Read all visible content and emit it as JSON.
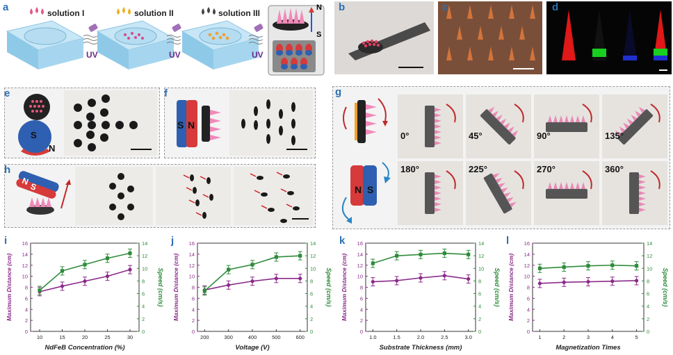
{
  "panels": {
    "a": "a",
    "b": "b",
    "c": "c",
    "d": "d",
    "e": "e",
    "f": "f",
    "g": "g",
    "h": "h",
    "i": "i",
    "j": "j",
    "k": "k",
    "l": "l"
  },
  "panel_a": {
    "solutions": [
      "solution I",
      "solution II",
      "solution III"
    ],
    "uv": "UV",
    "pole_n": "N",
    "pole_s": "S"
  },
  "panel_e": {
    "pole_s": "S",
    "pole_n": "N"
  },
  "panel_f": {
    "pole_s": "S",
    "pole_n": "N"
  },
  "panel_h": {
    "pole_n": "N",
    "pole_s": "S"
  },
  "panel_g": {
    "pole_n": "N",
    "pole_s": "S",
    "angles": [
      "0°",
      "45°",
      "90°",
      "135°",
      "180°",
      "225°",
      "270°",
      "360°"
    ]
  },
  "colors": {
    "blue_tray": "#a8d6ef",
    "pink": "#e27aa8",
    "purple_line": "#8a2a8a",
    "green_line": "#2e8b3a",
    "magnet_red": "#d63a3a",
    "magnet_blue": "#2f5fb0"
  },
  "chart_data": [
    {
      "type": "line",
      "xlabel": "NdFeB Concentration (%)",
      "ylabel": "Maximum Distance (cm)",
      "y2label": "Speed (cm/s)",
      "x": [
        10,
        15,
        20,
        25,
        30
      ],
      "xlim": [
        8,
        32
      ],
      "ylim": [
        0,
        16
      ],
      "y2lim": [
        0,
        14
      ],
      "xticks": [
        "10",
        "15",
        "20",
        "25",
        "30"
      ],
      "yticks": [
        "0",
        "2",
        "4",
        "6",
        "8",
        "10",
        "12",
        "14",
        "16"
      ],
      "y2ticks": [
        "0",
        "2",
        "4",
        "6",
        "8",
        "10",
        "12",
        "14"
      ],
      "series": [
        {
          "axis": "left",
          "values": [
            7.2,
            8.2,
            9.1,
            10.0,
            11.2
          ]
        },
        {
          "axis": "right",
          "values": [
            6.5,
            9.6,
            10.6,
            11.6,
            12.4
          ]
        }
      ]
    },
    {
      "type": "line",
      "xlabel": "Voltage (V)",
      "ylabel": "Maximum Distance (cm)",
      "y2label": "Speed (cm/s)",
      "x": [
        200,
        300,
        400,
        500,
        600
      ],
      "xlim": [
        170,
        630
      ],
      "ylim": [
        0,
        16
      ],
      "y2lim": [
        0,
        14
      ],
      "xticks": [
        "200",
        "300",
        "400",
        "500",
        "600"
      ],
      "yticks": [
        "0",
        "2",
        "4",
        "6",
        "8",
        "10",
        "12",
        "14",
        "16"
      ],
      "y2ticks": [
        "0",
        "2",
        "4",
        "6",
        "8",
        "10",
        "12",
        "14"
      ],
      "series": [
        {
          "axis": "left",
          "values": [
            7.5,
            8.4,
            9.1,
            9.6,
            9.6
          ]
        },
        {
          "axis": "right",
          "values": [
            6.4,
            9.8,
            10.6,
            11.8,
            12.0
          ]
        }
      ]
    },
    {
      "type": "line",
      "xlabel": "Substrate Thickness (mm)",
      "ylabel": "Maximum Distance (cm)",
      "y2label": "Speed (cm/s)",
      "x": [
        1.0,
        1.5,
        2.0,
        2.5,
        3.0
      ],
      "xlim": [
        0.85,
        3.15
      ],
      "ylim": [
        0,
        16
      ],
      "y2lim": [
        0,
        14
      ],
      "xticks": [
        "1.0",
        "1.5",
        "2.0",
        "2.5",
        "3.0"
      ],
      "yticks": [
        "0",
        "2",
        "4",
        "6",
        "8",
        "10",
        "12",
        "14",
        "16"
      ],
      "y2ticks": [
        "0",
        "2",
        "4",
        "6",
        "8",
        "10",
        "12",
        "14"
      ],
      "series": [
        {
          "axis": "left",
          "values": [
            9.0,
            9.2,
            9.7,
            10.1,
            9.5
          ]
        },
        {
          "axis": "right",
          "values": [
            10.8,
            12.0,
            12.2,
            12.4,
            12.2
          ]
        }
      ]
    },
    {
      "type": "line",
      "xlabel": "Magnetization Times",
      "ylabel": "Maximum Distance (cm)",
      "y2label": "Speed (cm/s)",
      "x": [
        1,
        2,
        3,
        4,
        5
      ],
      "xlim": [
        0.7,
        5.3
      ],
      "ylim": [
        0,
        16
      ],
      "y2lim": [
        0,
        14
      ],
      "xticks": [
        "1",
        "2",
        "3",
        "4",
        "5"
      ],
      "yticks": [
        "0",
        "2",
        "4",
        "6",
        "8",
        "10",
        "12",
        "14",
        "16"
      ],
      "y2ticks": [
        "0",
        "2",
        "4",
        "6",
        "8",
        "10",
        "12",
        "14"
      ],
      "series": [
        {
          "axis": "left",
          "values": [
            8.7,
            8.9,
            9.0,
            9.1,
            9.2
          ]
        },
        {
          "axis": "right",
          "values": [
            10.0,
            10.2,
            10.4,
            10.5,
            10.4
          ]
        }
      ]
    }
  ]
}
